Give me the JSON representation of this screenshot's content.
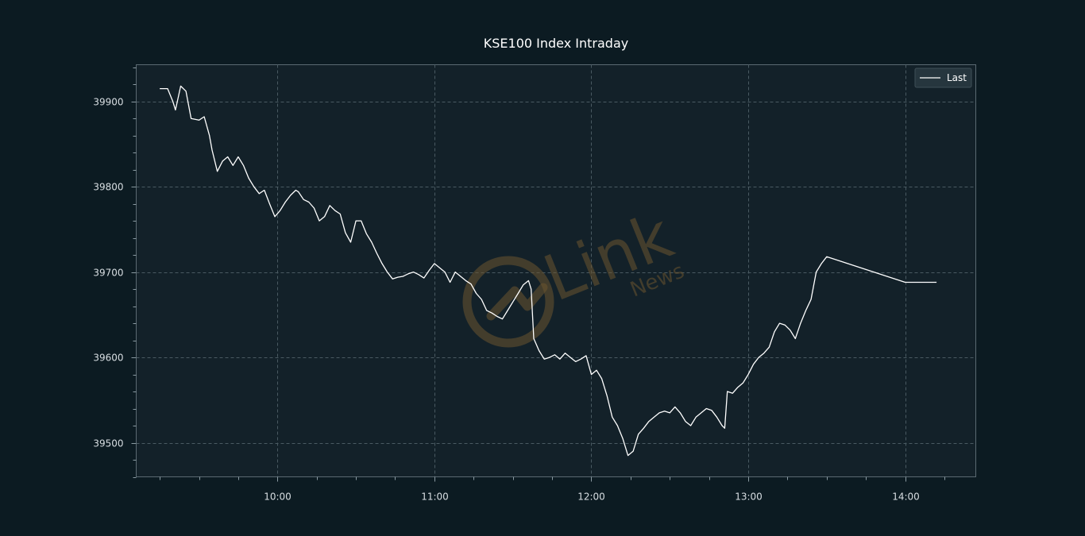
{
  "chart_data": {
    "type": "line",
    "title": "KSE100 Index Intraday",
    "xlabel": "",
    "ylabel": "",
    "x_tick_labels": [
      "10:00",
      "11:00",
      "12:00",
      "13:00",
      "14:00"
    ],
    "y_ticks": [
      39500,
      39600,
      39700,
      39800,
      39900
    ],
    "ylim": [
      39460,
      39943
    ],
    "xlim": [
      "09:06",
      "14:27"
    ],
    "grid": true,
    "legend_position": "top-right",
    "series": [
      {
        "name": "Last",
        "color": "#ffffff",
        "x": [
          "09:15",
          "09:18",
          "09:20",
          "09:21",
          "09:23",
          "09:25",
          "09:27",
          "09:30",
          "09:32",
          "09:34",
          "09:35",
          "09:37",
          "09:39",
          "09:41",
          "09:43",
          "09:45",
          "09:47",
          "09:49",
          "09:51",
          "09:53",
          "09:55",
          "09:57",
          "09:59",
          "10:01",
          "10:03",
          "10:05",
          "10:07",
          "10:08",
          "10:10",
          "10:12",
          "10:14",
          "10:16",
          "10:18",
          "10:20",
          "10:22",
          "10:24",
          "10:26",
          "10:28",
          "10:30",
          "10:32",
          "10:34",
          "10:36",
          "10:38",
          "10:40",
          "10:42",
          "10:44",
          "10:46",
          "10:48",
          "10:50",
          "10:52",
          "10:54",
          "10:56",
          "10:58",
          "11:00",
          "11:02",
          "11:04",
          "11:06",
          "11:08",
          "11:10",
          "11:12",
          "11:14",
          "11:16",
          "11:18",
          "11:20",
          "11:22",
          "11:24",
          "11:26",
          "11:28",
          "11:30",
          "11:32",
          "11:34",
          "11:36",
          "11:37",
          "11:38",
          "11:40",
          "11:42",
          "11:44",
          "11:46",
          "11:48",
          "11:50",
          "11:52",
          "11:54",
          "11:56",
          "11:58",
          "12:00",
          "12:02",
          "12:04",
          "12:06",
          "12:08",
          "12:10",
          "12:12",
          "12:14",
          "12:16",
          "12:18",
          "12:20",
          "12:22",
          "12:24",
          "12:26",
          "12:28",
          "12:30",
          "12:32",
          "12:34",
          "12:36",
          "12:38",
          "12:40",
          "12:42",
          "12:44",
          "12:46",
          "12:48",
          "12:50",
          "12:51",
          "12:52",
          "12:54",
          "12:56",
          "12:58",
          "13:00",
          "13:02",
          "13:04",
          "13:06",
          "13:08",
          "13:10",
          "13:12",
          "13:14",
          "13:16",
          "13:18",
          "13:20",
          "13:22",
          "13:24",
          "13:26",
          "13:28",
          "13:30",
          "14:00",
          "14:12"
        ],
        "values": [
          39915,
          39915,
          39900,
          39890,
          39918,
          39912,
          39880,
          39878,
          39882,
          39860,
          39843,
          39818,
          39830,
          39835,
          39825,
          39835,
          39825,
          39810,
          39800,
          39792,
          39796,
          39780,
          39765,
          39772,
          39782,
          39790,
          39796,
          39794,
          39785,
          39782,
          39775,
          39760,
          39765,
          39778,
          39772,
          39768,
          39746,
          39735,
          39760,
          39760,
          39745,
          39735,
          39722,
          39710,
          39700,
          39692,
          39694,
          39695,
          39698,
          39700,
          39697,
          39693,
          39702,
          39710,
          39705,
          39700,
          39688,
          39700,
          39695,
          39690,
          39686,
          39675,
          39668,
          39655,
          39652,
          39648,
          39645,
          39655,
          39665,
          39675,
          39685,
          39690,
          39680,
          39622,
          39608,
          39598,
          39600,
          39603,
          39598,
          39605,
          39600,
          39595,
          39598,
          39602,
          39580,
          39585,
          39575,
          39555,
          39530,
          39520,
          39505,
          39485,
          39490,
          39510,
          39517,
          39525,
          39530,
          39535,
          39537,
          39535,
          39542,
          39535,
          39525,
          39520,
          39530,
          39535,
          39540,
          39538,
          39530,
          39520,
          39517,
          39560,
          39558,
          39565,
          39570,
          39580,
          39592,
          39600,
          39605,
          39612,
          39630,
          39640,
          39638,
          39632,
          39622,
          39640,
          39655,
          39668,
          39700,
          39710,
          39718,
          39688,
          39688
        ]
      }
    ]
  },
  "legend": {
    "label": "Last"
  },
  "watermark": {
    "brand": "Link",
    "sub": "News"
  }
}
